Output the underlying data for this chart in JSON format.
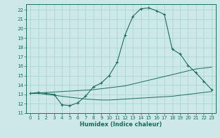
{
  "xlabel": "Humidex (Indice chaleur)",
  "bg_color": "#cce8e8",
  "grid_color": "#a8d0d0",
  "line_color": "#1a6b5a",
  "xlim": [
    -0.5,
    23.5
  ],
  "ylim": [
    11,
    22.6
  ],
  "xticks": [
    0,
    1,
    2,
    3,
    4,
    5,
    6,
    7,
    8,
    9,
    10,
    11,
    12,
    13,
    14,
    15,
    16,
    17,
    18,
    19,
    20,
    21,
    22,
    23
  ],
  "yticks": [
    11,
    12,
    13,
    14,
    15,
    16,
    17,
    18,
    19,
    20,
    21,
    22
  ],
  "line1_x": [
    0,
    1,
    2,
    3,
    4,
    5,
    6,
    7,
    8,
    9,
    10,
    11,
    12,
    13,
    14,
    15,
    16,
    17,
    18,
    19,
    20,
    21,
    22,
    23
  ],
  "line1_y": [
    13.1,
    13.2,
    13.1,
    13.0,
    11.9,
    11.8,
    12.1,
    12.8,
    13.8,
    14.2,
    15.0,
    16.4,
    19.3,
    21.3,
    22.1,
    22.2,
    21.9,
    21.5,
    17.8,
    17.3,
    16.1,
    15.3,
    14.4,
    13.5
  ],
  "line2_x": [
    0,
    1,
    2,
    3,
    4,
    5,
    6,
    7,
    8,
    9,
    10,
    11,
    12,
    13,
    14,
    15,
    16,
    17,
    18,
    19,
    20,
    21,
    22,
    23
  ],
  "line2_y": [
    13.1,
    13.15,
    13.2,
    13.25,
    13.3,
    13.35,
    13.4,
    13.45,
    13.5,
    13.6,
    13.7,
    13.8,
    13.9,
    14.1,
    14.3,
    14.5,
    14.7,
    14.9,
    15.1,
    15.3,
    15.5,
    15.7,
    15.8,
    15.9
  ],
  "line3_x": [
    0,
    1,
    2,
    3,
    4,
    5,
    6,
    7,
    8,
    9,
    10,
    11,
    12,
    13,
    14,
    15,
    16,
    17,
    18,
    19,
    20,
    21,
    22,
    23
  ],
  "line3_y": [
    13.1,
    13.1,
    13.0,
    12.9,
    12.8,
    12.7,
    12.6,
    12.5,
    12.45,
    12.4,
    12.4,
    12.45,
    12.5,
    12.55,
    12.6,
    12.65,
    12.7,
    12.75,
    12.8,
    12.9,
    13.0,
    13.1,
    13.2,
    13.3
  ]
}
